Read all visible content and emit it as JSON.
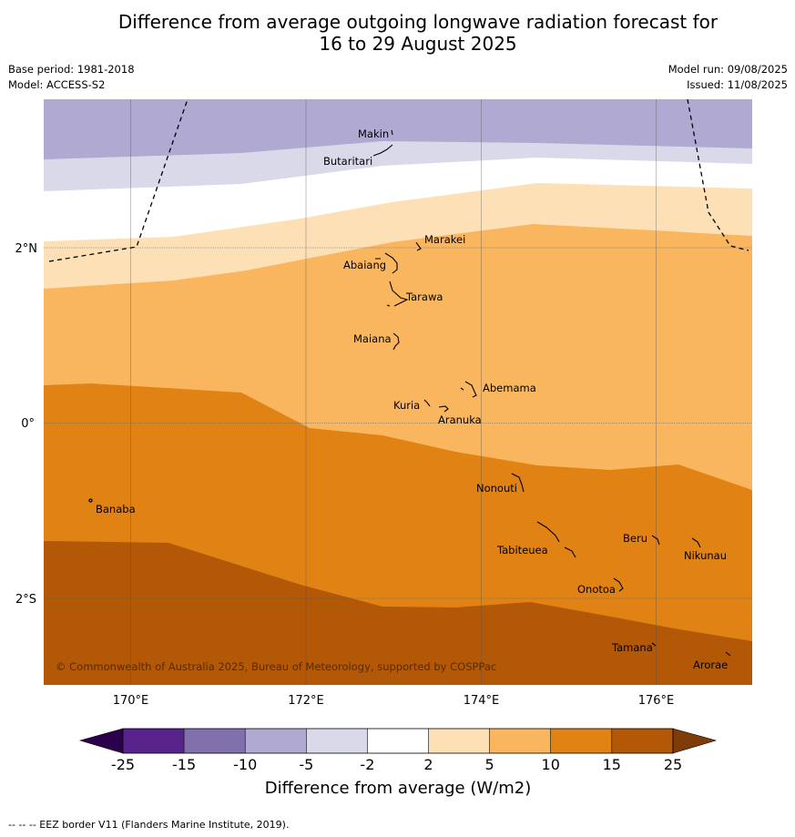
{
  "title_line1": "Difference from average outgoing longwave radiation forecast for",
  "title_line2": "16 to 29 August 2025",
  "base_period": "Base period: 1981-2018",
  "model": "Model: ACCESS-S2",
  "model_run": "Model run: 09/08/2025",
  "issued": "Issued: 11/08/2025",
  "copyright": "© Commonwealth of Australia 2025, Bureau of Meteorology, supported by COSPPac",
  "colorbar_label": "Difference from average (W/m2)",
  "footer_note": "--  --  -- EEZ border V11 (Flanders Marine Institute, 2019).",
  "lon_ticks": [
    "170°E",
    "172°E",
    "174°E",
    "176°E"
  ],
  "lat_ticks": [
    "2°N",
    "0°",
    "2°S"
  ],
  "colorbar": {
    "ticks": [
      "-25",
      "-15",
      "-10",
      "-5",
      "-2",
      "2",
      "5",
      "10",
      "15",
      "25"
    ],
    "colors": [
      "#59238c",
      "#8070ad",
      "#b0a9d2",
      "#d9d9ea",
      "#ffffff",
      "#fde0b6",
      "#fab65e",
      "#e08214",
      "#b25807"
    ],
    "under_color": "#2d004b",
    "over_color": "#7f3b08"
  },
  "places": [
    {
      "name": "Makin"
    },
    {
      "name": "Butaritari"
    },
    {
      "name": "Marakei"
    },
    {
      "name": "Abaiang"
    },
    {
      "name": "Tarawa"
    },
    {
      "name": "Maiana"
    },
    {
      "name": "Abemama"
    },
    {
      "name": "Kuria"
    },
    {
      "name": "Aranuka"
    },
    {
      "name": "Banaba"
    },
    {
      "name": "Nonouti"
    },
    {
      "name": "Beru"
    },
    {
      "name": "Tabiteuea"
    },
    {
      "name": "Nikunau"
    },
    {
      "name": "Onotoa"
    },
    {
      "name": "Tamana"
    },
    {
      "name": "Arorae"
    }
  ]
}
